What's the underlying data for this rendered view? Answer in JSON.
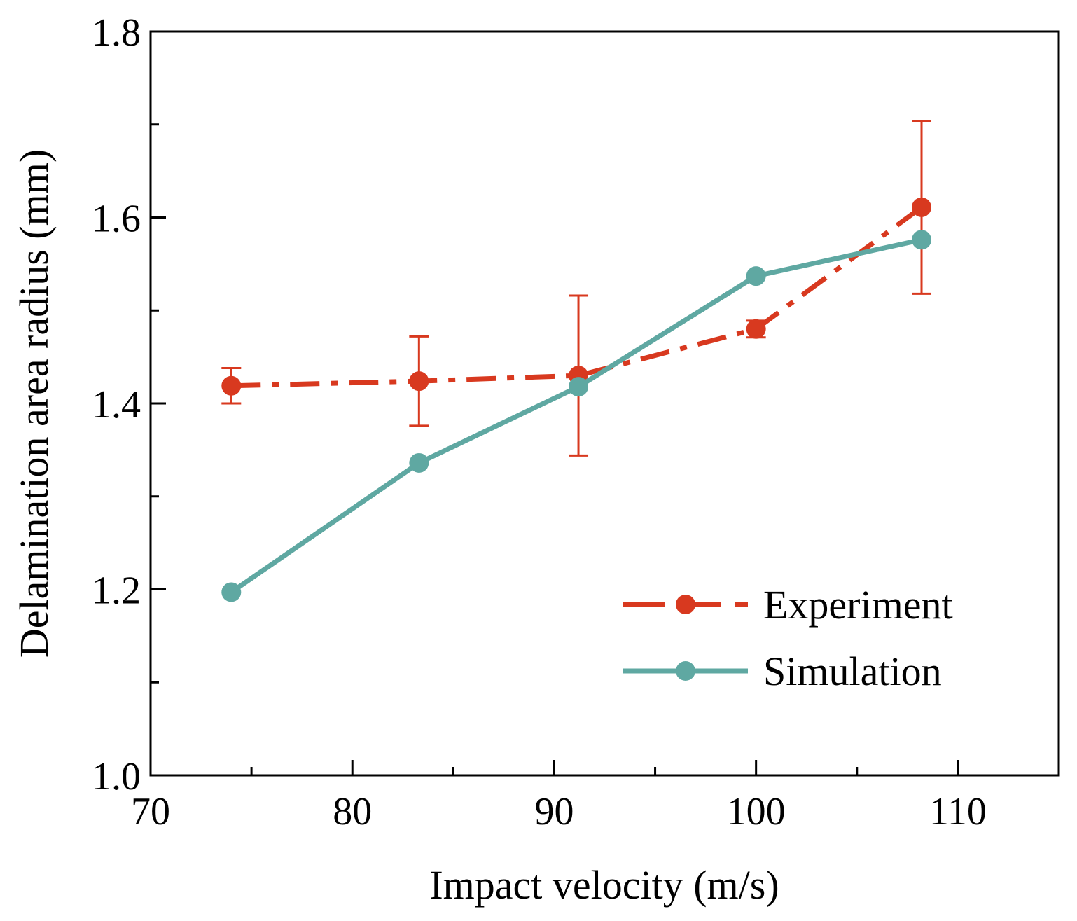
{
  "chart_data": {
    "type": "line",
    "title": "",
    "xlabel": "Impact velocity (m/s)",
    "ylabel": "Delamination area radius (mm)",
    "xlim": [
      70,
      115
    ],
    "ylim": [
      1.0,
      1.8
    ],
    "x_ticks": [
      70,
      80,
      90,
      100,
      110
    ],
    "x_tick_labels": [
      "70",
      "80",
      "90",
      "100",
      "110"
    ],
    "x_minor_ticks": [
      75,
      85,
      95,
      105
    ],
    "y_ticks": [
      1.0,
      1.2,
      1.4,
      1.6,
      1.8
    ],
    "y_tick_labels": [
      "1.0",
      "1.2",
      "1.4",
      "1.6",
      "1.8"
    ],
    "y_minor_ticks": [
      1.1,
      1.3,
      1.5,
      1.7
    ],
    "grid": false,
    "legend_position": "bottom-right",
    "series": [
      {
        "name": "Experiment",
        "color": "#d8391f",
        "line_style": "dash-dot",
        "x": [
          74.0,
          83.3,
          91.2,
          100.0,
          108.2
        ],
        "y": [
          1.419,
          1.424,
          1.43,
          1.48,
          1.611
        ],
        "y_err": [
          0.019,
          0.048,
          0.086,
          0.009,
          0.093
        ]
      },
      {
        "name": "Simulation",
        "color": "#5fa8a2",
        "line_style": "solid",
        "x": [
          74.0,
          83.3,
          91.2,
          100.0,
          108.2
        ],
        "y": [
          1.197,
          1.336,
          1.418,
          1.537,
          1.576
        ]
      }
    ]
  }
}
